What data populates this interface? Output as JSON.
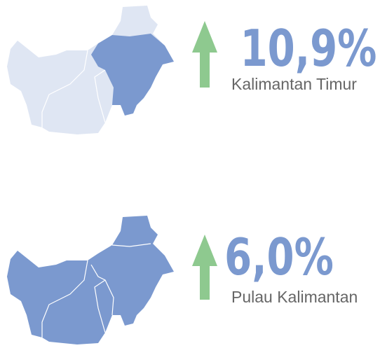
{
  "items": [
    {
      "value": "10,9%",
      "label": "Kalimantan Timur"
    },
    {
      "value": "6,0%",
      "label": "Pulau Kalimantan"
    }
  ]
}
